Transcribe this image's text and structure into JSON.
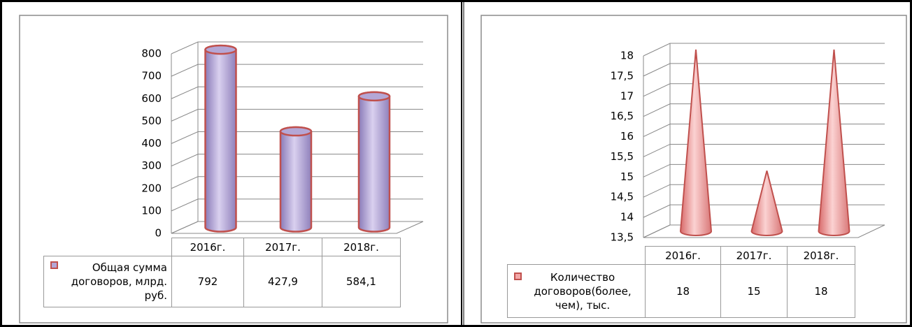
{
  "chart_data": [
    {
      "type": "bar",
      "categories": [
        "2016г.",
        "2017г.",
        "2018г."
      ],
      "series": [
        {
          "name": "Общая сумма договоров, млрд. руб.",
          "color": "#b4a7d6",
          "values": [
            792,
            427.9,
            584.1
          ],
          "value_labels": [
            "792",
            "427,9",
            "584,1"
          ]
        }
      ],
      "ylim": [
        0,
        800
      ],
      "yticks": [
        0,
        100,
        200,
        300,
        400,
        500,
        600,
        700,
        800
      ],
      "grid": true
    },
    {
      "type": "cone",
      "categories": [
        "2016г.",
        "2017г.",
        "2018г."
      ],
      "series": [
        {
          "name": "Количество договоров(более, чем), тыс.",
          "color": "#f2a7a7",
          "values": [
            18,
            15,
            18
          ]
        }
      ],
      "ylim": [
        13.5,
        18
      ],
      "yticks": [
        {
          "value": 13.5,
          "label": "13,5"
        },
        14,
        {
          "value": 14.5,
          "label": "14,5"
        },
        15,
        {
          "value": 15.5,
          "label": "15,5"
        },
        16,
        {
          "value": 16.5,
          "label": "16,5"
        },
        17,
        {
          "value": 17.5,
          "label": "17,5"
        },
        18
      ],
      "grid": true
    }
  ]
}
